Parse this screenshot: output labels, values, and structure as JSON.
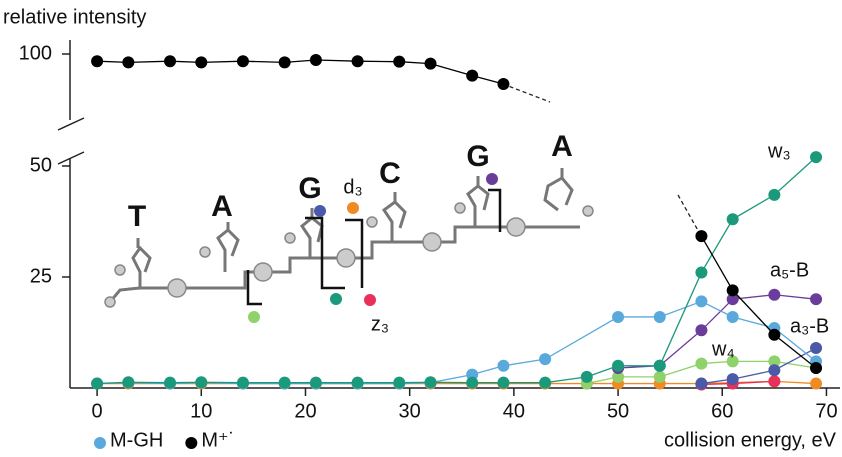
{
  "chart_data": {
    "type": "line",
    "y_axis_label": "relative intensity",
    "x_axis_label": "collision energy, eV",
    "xlim": [
      -2.6,
      71.3
    ],
    "xticks": [
      0,
      10,
      20,
      30,
      40,
      50,
      60,
      70
    ],
    "ylim": [
      0,
      53.6
    ],
    "yticks": [
      25,
      50
    ],
    "y2lim": [
      70,
      105
    ],
    "y2ticks": [
      100
    ],
    "series": [
      {
        "label": "d₃",
        "color": "#f08a24",
        "x": [
          0,
          3,
          7,
          10,
          14,
          18,
          21,
          25,
          29,
          32,
          36,
          39,
          43,
          47,
          50,
          54,
          58,
          61,
          65,
          69
        ],
        "values": [
          1,
          1,
          1,
          1,
          1,
          1,
          1,
          1,
          1,
          1,
          1,
          1,
          1,
          1,
          1,
          1,
          1,
          1.2,
          1.5,
          1
        ]
      },
      {
        "label": "z₃",
        "color": "#e8305a",
        "x": [
          58,
          61,
          65
        ],
        "values": [
          0.8,
          1,
          1.5
        ]
      },
      {
        "label": "w₄",
        "color": "#8fd16a",
        "x": [
          47,
          50,
          54,
          58,
          61,
          65,
          69
        ],
        "values": [
          1,
          2.5,
          2.5,
          5.5,
          6,
          6,
          4.5
        ]
      },
      {
        "label": "a₃-B",
        "color": "#4a5aa8",
        "x": [
          58,
          61,
          65,
          69
        ],
        "values": [
          1,
          2,
          4,
          9
        ]
      },
      {
        "label": "a₅-B",
        "color": "#6a3d9a",
        "x": [
          50,
          54,
          58,
          61,
          65,
          69
        ],
        "values": [
          4.5,
          5,
          13,
          20,
          21,
          20
        ]
      },
      {
        "name": "M-GH",
        "color": "#5aa9dc",
        "x": [
          0,
          3,
          7,
          10,
          14,
          18,
          21,
          25,
          29,
          32,
          36,
          39,
          43,
          50,
          54,
          58,
          61,
          65,
          69
        ],
        "values": [
          1,
          1.2,
          1,
          1.2,
          1,
          1,
          1,
          1,
          1,
          1.2,
          3,
          5,
          6.5,
          16,
          16,
          19.5,
          16,
          13.5,
          6
        ]
      },
      {
        "label": "w₃",
        "color": "#1a9a7a",
        "x": [
          0,
          3,
          7,
          10,
          14,
          18,
          21,
          25,
          29,
          32,
          36,
          39,
          43,
          47,
          50,
          54,
          58,
          61,
          65,
          69
        ],
        "values": [
          1,
          1.3,
          1.2,
          1.3,
          1.2,
          1.2,
          1.2,
          1.2,
          1.2,
          1.3,
          1.2,
          1.2,
          1.2,
          2.5,
          5,
          5,
          26,
          38,
          43.5,
          52
        ]
      },
      {
        "color": "#000000",
        "x": [
          58,
          61,
          65,
          69
        ],
        "values": [
          34.2,
          22,
          12,
          4.5
        ]
      },
      {
        "name": "M⁺˙",
        "color": "#000000",
        "axis": "y2",
        "x": [
          0,
          3,
          7,
          10,
          14,
          18,
          21,
          25,
          29,
          32,
          36,
          39
        ],
        "values": [
          97,
          96.5,
          97,
          96.5,
          97,
          96.5,
          97.5,
          97,
          96.8,
          96,
          91,
          87.5
        ]
      }
    ]
  },
  "molecule": {
    "bases": [
      "T",
      "A",
      "G",
      "C",
      "G",
      "A"
    ],
    "fragments": [
      "d₃",
      "z₃"
    ]
  }
}
